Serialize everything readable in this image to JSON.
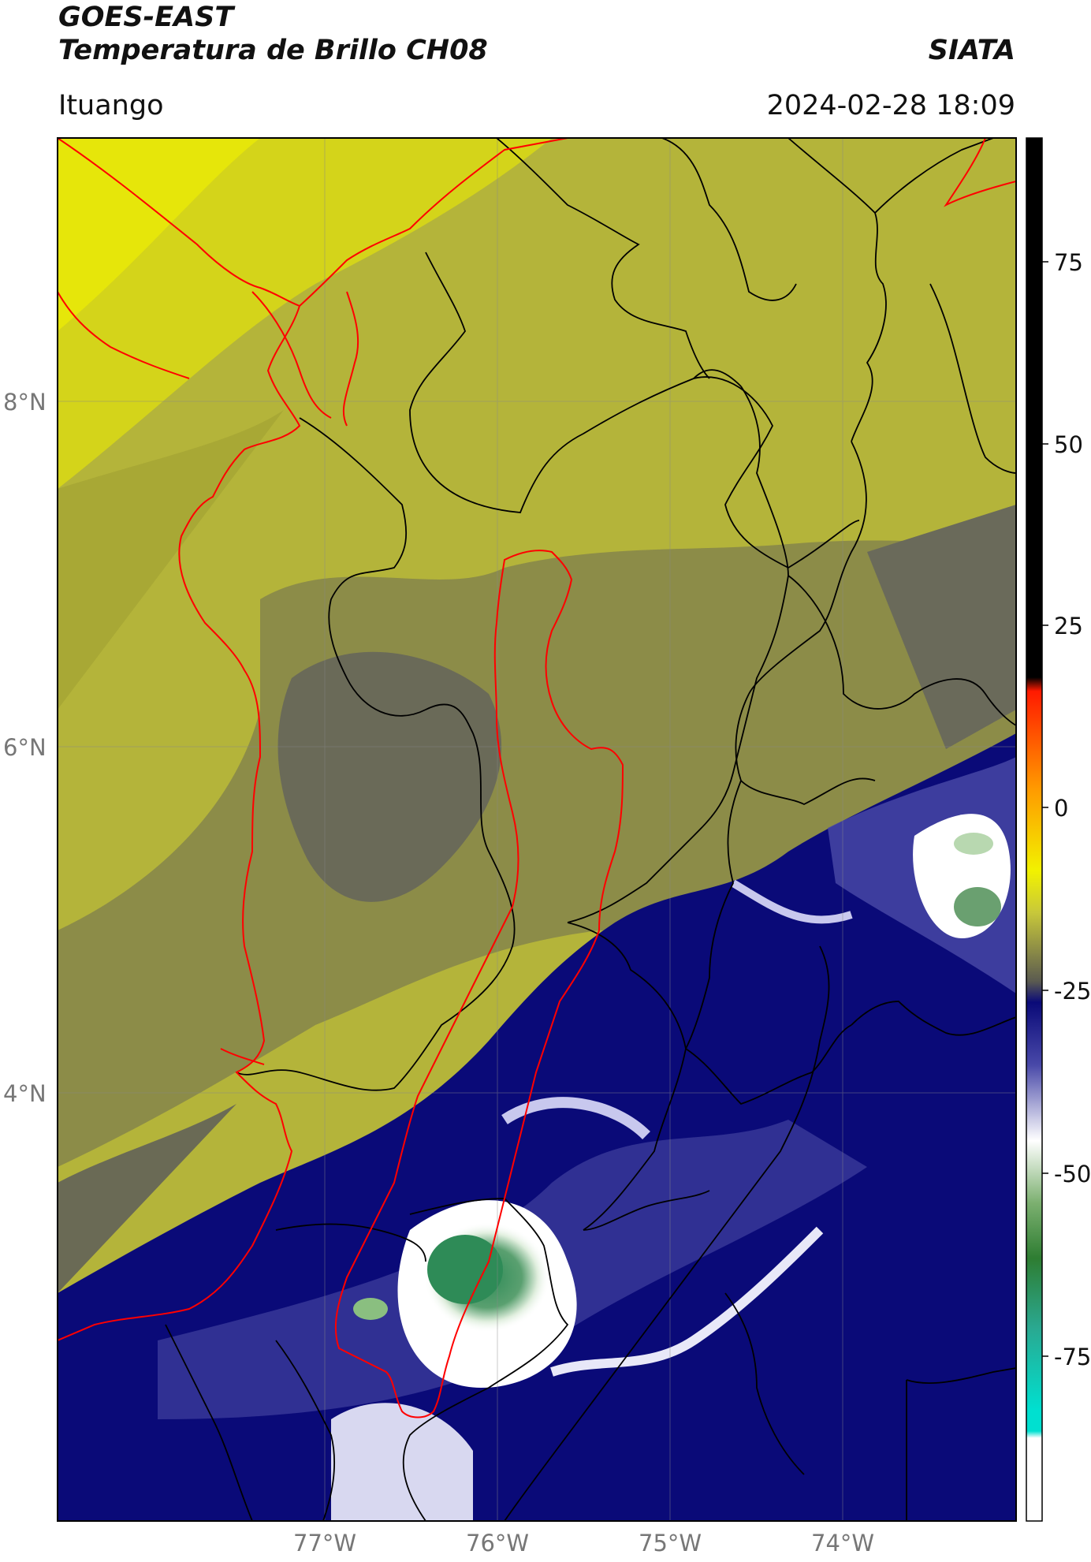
{
  "header": {
    "title": "GOES-EAST",
    "subtitle": "Temperatura de Brillo CH08",
    "organization": "SIATA",
    "region": "Ituango",
    "datetime": "2024-02-28 18:09"
  },
  "map": {
    "lat_labels": [
      "8°N",
      "6°N",
      "4°N"
    ],
    "lon_labels": [
      "77°W",
      "76°W",
      "75°W",
      "74°W"
    ],
    "boundary_colors": {
      "coast": "#ff0000",
      "admin": "#000000",
      "basin": "#ff0000"
    }
  },
  "colorbar": {
    "ticks": [
      "75",
      "50",
      "25",
      "0",
      "-25",
      "-50",
      "-75"
    ],
    "colors": {
      "black": "#000000",
      "red": "#ff1a00",
      "orange": "#ff9900",
      "yellow": "#f2f200",
      "olive": "#5a5a44",
      "navy": "#0a0a78",
      "white": "#ffffff",
      "green": "#2e8b57",
      "cyan": "#00e0d0"
    }
  }
}
